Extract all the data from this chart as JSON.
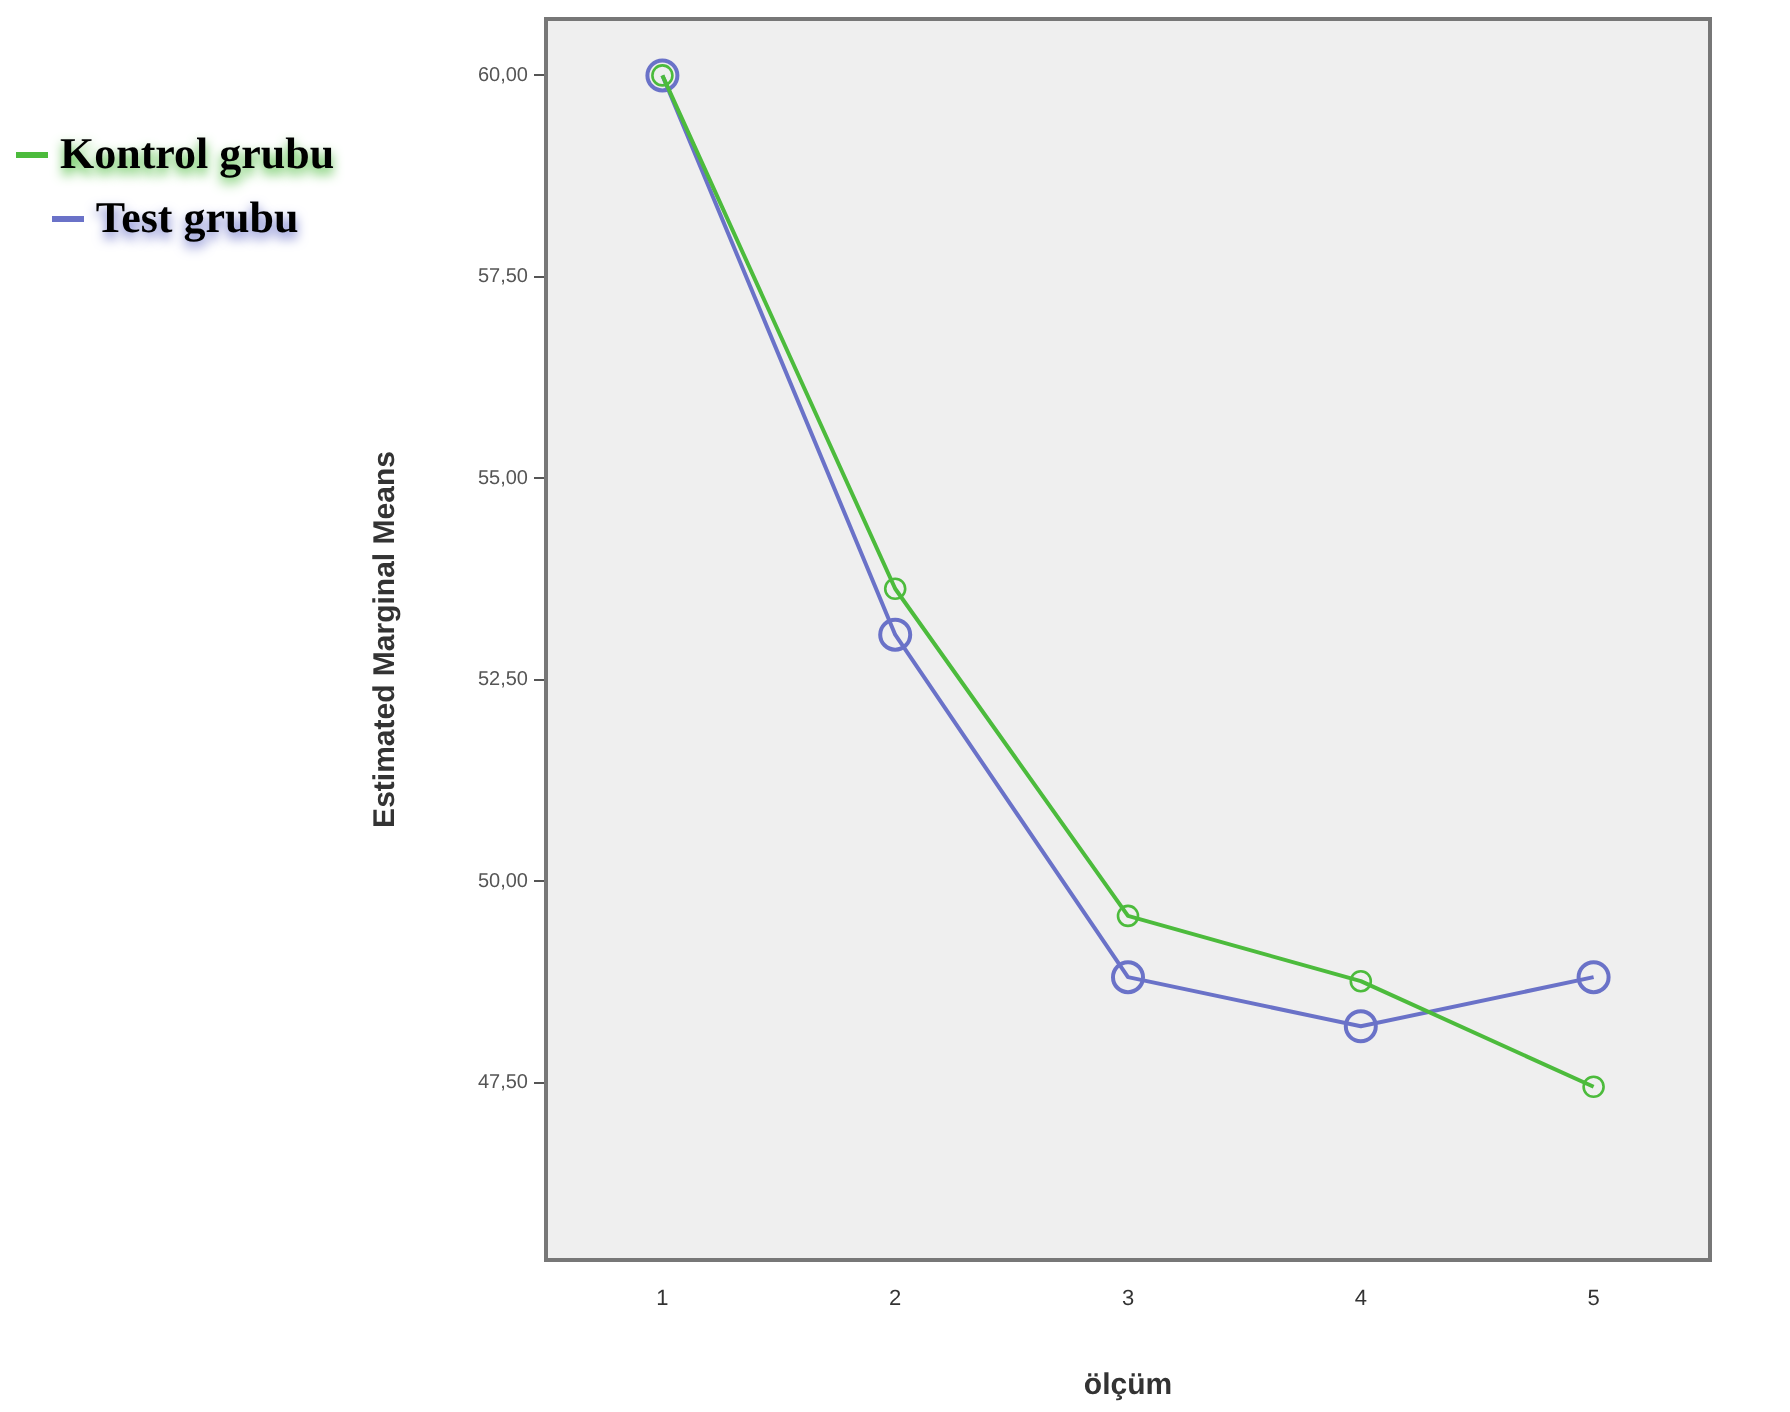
{
  "chart_data": {
    "type": "line",
    "xlabel": "ölçüm",
    "ylabel": "Estimated Marginal Means",
    "categories": [
      "1",
      "2",
      "3",
      "4",
      "5"
    ],
    "series": [
      {
        "name": "Kontrol grubu",
        "color": "#4cbb3c",
        "values": [
          60.0,
          53.63,
          49.57,
          48.76,
          47.45
        ]
      },
      {
        "name": "Test grubu",
        "color": "#6a72c8",
        "values": [
          60.0,
          53.06,
          48.81,
          48.2,
          48.81
        ]
      }
    ],
    "ylim": [
      45.3,
      60.7
    ],
    "yticks": [
      {
        "value": 47.5,
        "label": "47,50"
      },
      {
        "value": 50,
        "label": "50,00"
      },
      {
        "value": 52.5,
        "label": "52,50"
      },
      {
        "value": 55,
        "label": "55,00"
      },
      {
        "value": 57.5,
        "label": "57,50"
      },
      {
        "value": 60,
        "label": "60,00"
      }
    ],
    "grid": false,
    "legend": "top left",
    "marker": "circle",
    "line_style": "solid"
  }
}
